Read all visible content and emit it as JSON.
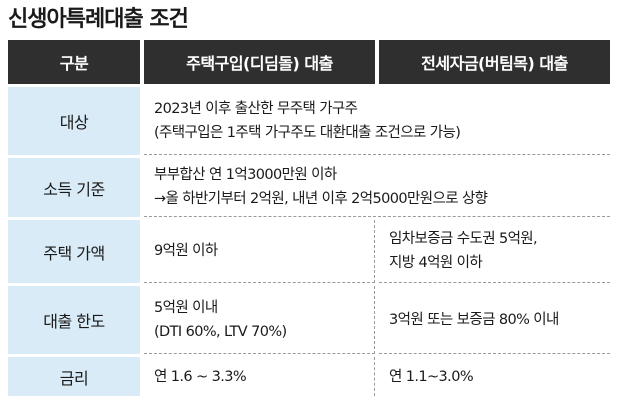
{
  "title": "신생아특례대출 조건",
  "table": {
    "headers": [
      "구분",
      "주택구입(디딤돌) 대출",
      "전세자금(버팀목) 대출"
    ],
    "rows": [
      {
        "label": "대상",
        "common": [
          "2023년 이후 출산한 무주택 가구주",
          "(주택구입은 1주택 가구주도 대환대출 조건으로 가능)"
        ]
      },
      {
        "label": "소득 기준",
        "common": [
          "부부합산 연 1억3000만원 이하",
          "→올 하반기부터 2억원, 내년 이후 2억5000만원으로 상향"
        ]
      },
      {
        "label": "주택 가액",
        "purchase": [
          "9억원 이하"
        ],
        "jeonse": [
          "임차보증금 수도권 5억원,",
          "지방 4억원 이하"
        ]
      },
      {
        "label": "대출 한도",
        "purchase": [
          "5억원 이내",
          "(DTI 60%, LTV 70%)"
        ],
        "jeonse": [
          "3억원 또는 보증금 80% 이내"
        ]
      },
      {
        "label": "금리",
        "purchase": [
          "연 1.6 ~ 3.3%"
        ],
        "jeonse": [
          "연 1.1~3.0%"
        ]
      }
    ]
  }
}
